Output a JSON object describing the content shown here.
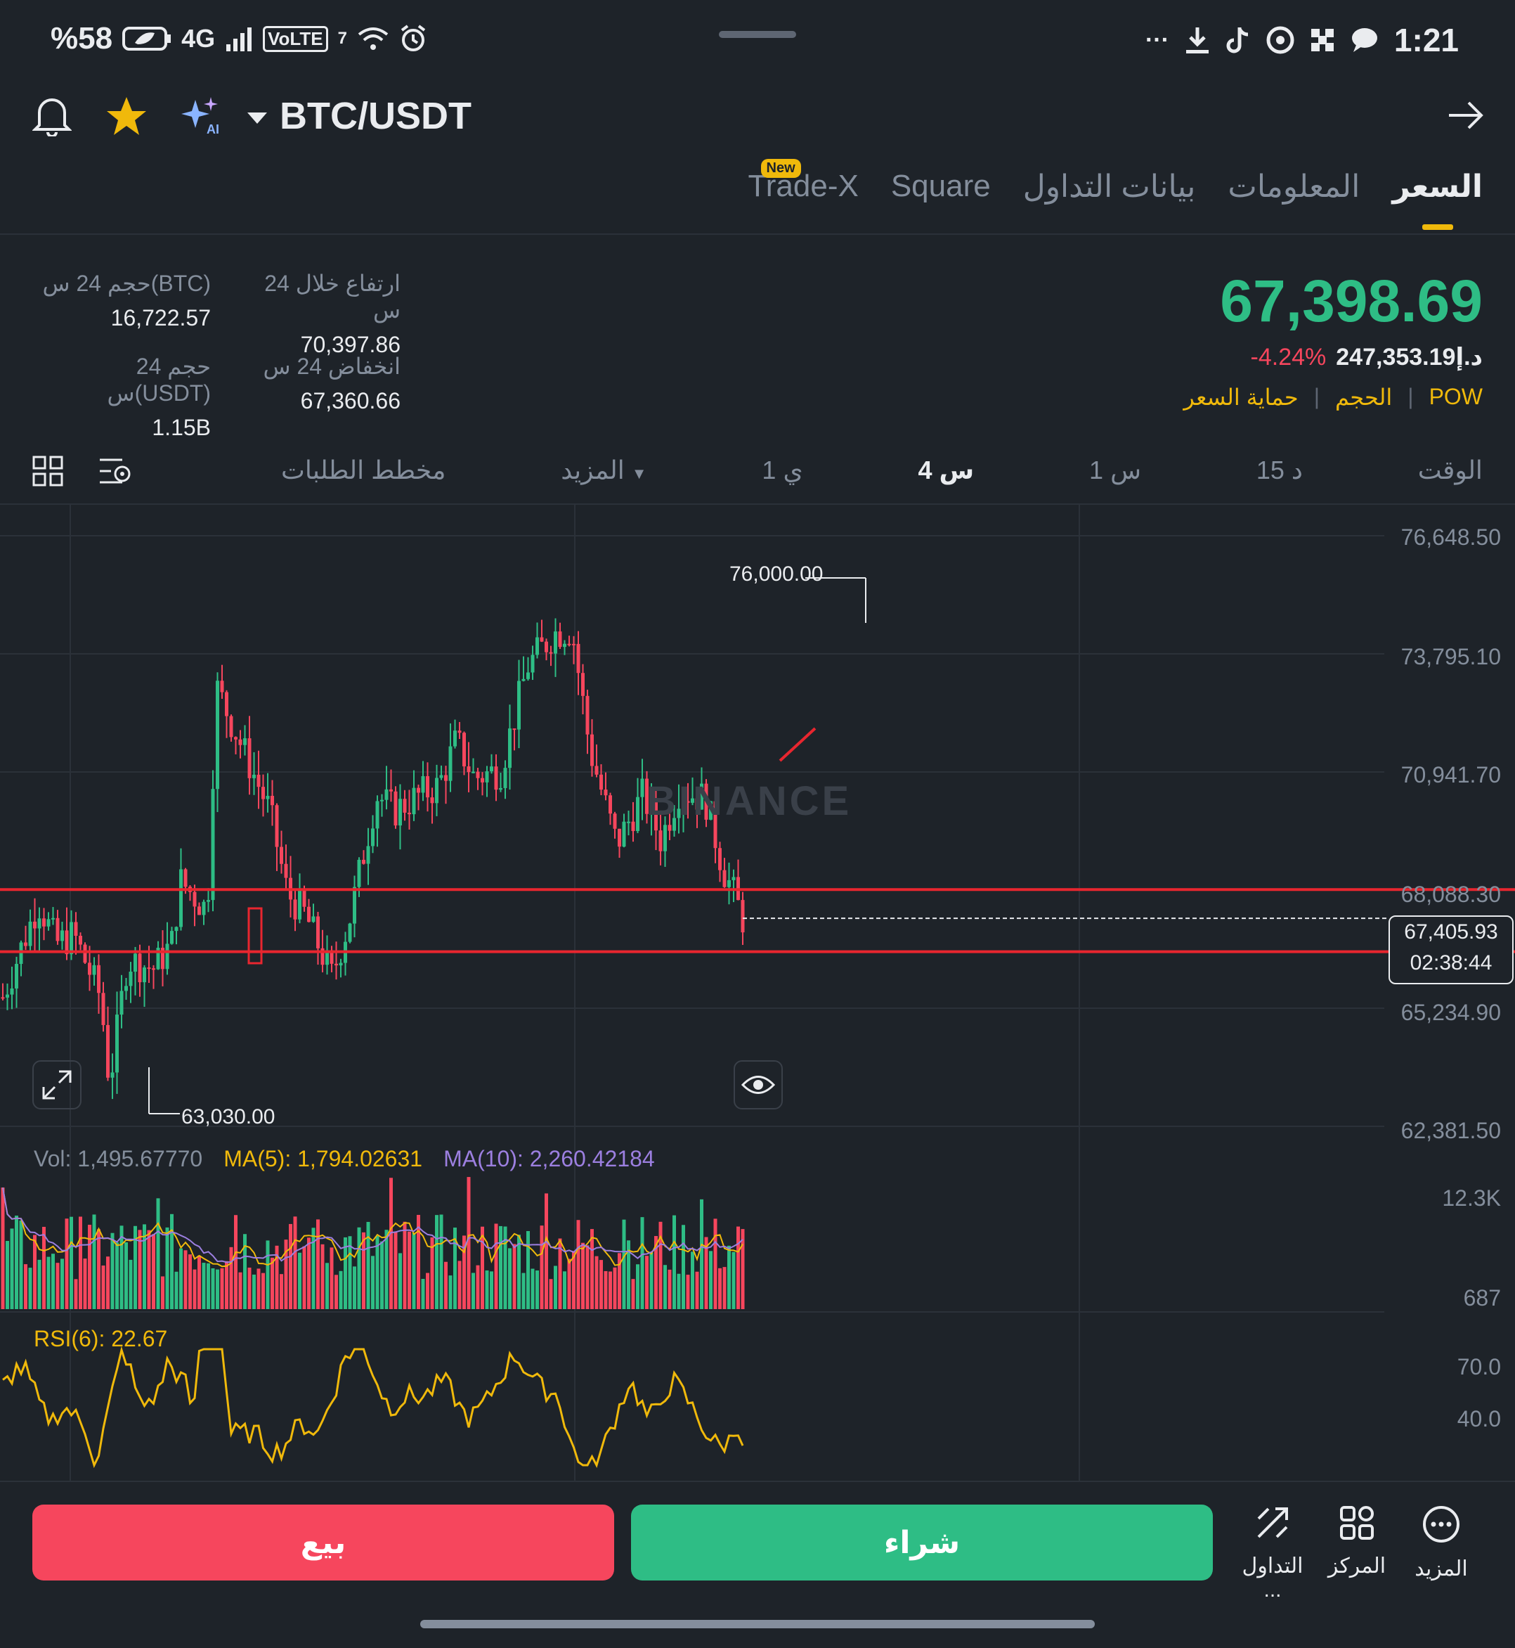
{
  "status_bar": {
    "battery": "%58",
    "network": "4G",
    "volte": "VoLTE",
    "wifi_badge": "7",
    "time": "1:21",
    "more": "···"
  },
  "header": {
    "pair": "BTC/USDT"
  },
  "tabs": [
    {
      "label": "السعر",
      "active": true
    },
    {
      "label": "المعلومات"
    },
    {
      "label": "بيانات التداول"
    },
    {
      "label": "Square"
    },
    {
      "label": "Trade-X",
      "badge": "New"
    }
  ],
  "ticker": {
    "last_price": "67,398.69",
    "fiat_price": "د.إ247,353.19",
    "change": "-4.24%",
    "tags": [
      "POW",
      "الحجم",
      "حماية السعر"
    ],
    "stats": [
      {
        "label": "ارتفاع خلال 24 س",
        "value": "70,397.86"
      },
      {
        "label": "حجم 24 س(BTC)",
        "value": "16,722.57"
      },
      {
        "label": "انخفاض 24 س",
        "value": "67,360.66"
      },
      {
        "label": "حجم 24 س(USDT)",
        "value": "1.15B"
      }
    ]
  },
  "timeframes": {
    "items": [
      "الوقت",
      "15 د",
      "1 س",
      "4 س",
      "1 ي",
      "المزيد",
      "مخطط الطلبات"
    ],
    "active": "4 س"
  },
  "chart_data": {
    "type": "candlestick",
    "watermark": "BINANCE",
    "y_axis_ticks": [
      "76,648.50",
      "73,795.10",
      "70,941.70",
      "68,088.30",
      "65,234.90",
      "62,381.50"
    ],
    "ylim": [
      62381.5,
      76648.5
    ],
    "high_marker": "76,000.00",
    "low_marker": "63,030.00",
    "current_price": "67,405.93",
    "countdown": "02:38:44",
    "horizontal_lines": [
      68100,
      66600
    ],
    "volume": {
      "vol": "Vol: 1,495.67770",
      "ma5": "MA(5): 1,794.02631",
      "ma10": "MA(10): 2,260.42184",
      "ticks": [
        "12.3K",
        "687"
      ]
    },
    "rsi": {
      "label": "RSI(6): 22.67",
      "ticks": [
        "70.0",
        "40.0"
      ]
    },
    "colors": {
      "up": "#2ebd85",
      "down": "#f6465d",
      "line": "#e8262f",
      "ma5": "#f0b90b",
      "ma10": "#9c7fe0"
    }
  },
  "actions": {
    "buy": "شراء",
    "sell": "بيع",
    "more": "المزيد",
    "center": "المركز",
    "trade": "التداول ..."
  }
}
